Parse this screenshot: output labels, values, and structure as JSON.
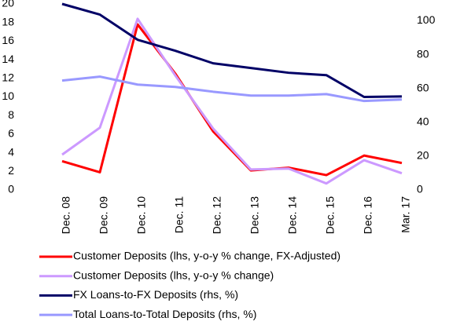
{
  "chart_data": {
    "type": "line",
    "categories": [
      "Dec. 08",
      "Dec. 09",
      "Dec. 10",
      "Dec. 11",
      "Dec. 12",
      "Dec. 13",
      "Dec. 14",
      "Dec. 15",
      "Dec. 16",
      "Mar. 17"
    ],
    "series": [
      {
        "name": "Customer Deposits (lhs, y-o-y % change, FX-Adjusted)",
        "color": "#ff0000",
        "values": [
          3.1,
          1.9,
          17.8,
          12.5,
          6.3,
          2.1,
          2.4,
          1.6,
          3.7,
          2.9
        ]
      },
      {
        "name": "Customer Deposits (lhs, y-o-y % change)",
        "color": "#cc99ff",
        "values": [
          3.8,
          6.7,
          18.4,
          12.3,
          6.6,
          2.2,
          2.3,
          0.7,
          3.2,
          1.8
        ]
      },
      {
        "name": "FX Loans-to-FX Deposits (rhs, %)",
        "color": "#000066",
        "axis": "y2",
        "values": [
          110,
          103.7,
          88.8,
          82.3,
          74.9,
          72.1,
          69.3,
          67.9,
          55.0,
          55.3
        ]
      },
      {
        "name": "Total Loans-to-Total Deposits (rhs, %)",
        "color": "#9999ff",
        "axis": "y2",
        "values": [
          64.7,
          67.0,
          62.3,
          60.9,
          58.1,
          55.8,
          55.8,
          56.7,
          52.6,
          53.5
        ]
      }
    ],
    "ylim": [
      0,
      20
    ],
    "yticks": [
      0,
      2,
      4,
      6,
      8,
      10,
      12,
      14,
      16,
      18,
      20
    ],
    "y2lim": [
      0,
      110
    ],
    "y2ticks": [
      0,
      20,
      40,
      60,
      80,
      100
    ],
    "grid": false,
    "legend": "bottom"
  }
}
